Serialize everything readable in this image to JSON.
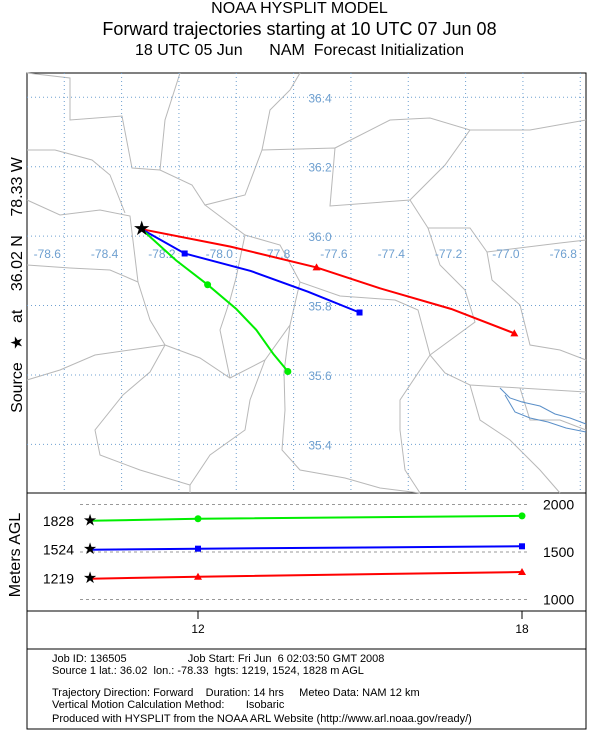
{
  "header": {
    "line1": "NOAA HYSPLIT MODEL",
    "line2": "Forward trajectories starting at 10 UTC 07 Jun 08",
    "line3": "18 UTC 05 Jun      NAM  Forecast Initialization"
  },
  "side_label": {
    "source": "Source",
    "at": "at",
    "lat": "36.02 N",
    "lon": "78.33 W"
  },
  "meters_label": "Meters AGL",
  "colors": {
    "red": "#ff0000",
    "blue": "#0000ff",
    "green": "#00ee00",
    "grid": "#6fa0d0",
    "map": "#b0b0b0"
  },
  "chart_data": [
    {
      "type": "line",
      "title": "Forward trajectories starting at 10 UTC 07 Jun 08",
      "xlabel": "",
      "ylabel": "",
      "lon_ticks": [
        "-78.6",
        "-78.4",
        "-78.2",
        "-78.0",
        "-77.8",
        "-77.6",
        "-77.4",
        "-77.2",
        "-77.0",
        "-76.8"
      ],
      "lat_ticks": [
        "36.4",
        "36.2",
        "36.0",
        "35.8",
        "35.6",
        "35.4"
      ],
      "xlim": [
        -78.73,
        -76.78
      ],
      "ylim": [
        35.26,
        36.47
      ],
      "source": {
        "lat": 36.02,
        "lon": -78.33
      },
      "series": [
        {
          "color": "red",
          "x": [
            -78.33,
            -78.02,
            -77.72,
            -77.5,
            -77.25,
            -77.03
          ],
          "y": [
            36.02,
            35.97,
            35.91,
            35.85,
            35.79,
            35.72
          ]
        },
        {
          "color": "blue",
          "x": [
            -78.33,
            -78.18,
            -77.95,
            -77.75,
            -77.57
          ],
          "y": [
            36.02,
            35.95,
            35.9,
            35.84,
            35.78
          ]
        },
        {
          "color": "green",
          "x": [
            -78.33,
            -78.21,
            -78.1,
            -78.0,
            -77.93,
            -77.87,
            -77.82
          ],
          "y": [
            36.02,
            35.93,
            35.86,
            35.79,
            35.73,
            35.66,
            35.61
          ]
        }
      ]
    },
    {
      "type": "line",
      "xlabel": "",
      "ylabel": "Meters AGL",
      "x_ticks": [
        "12",
        "18"
      ],
      "y_ticks": [
        "2000",
        "1500",
        "1000"
      ],
      "start_labels": [
        "1828",
        "1524",
        "1219"
      ],
      "xlim": [
        10,
        18
      ],
      "ylim": [
        900,
        2100
      ],
      "series": [
        {
          "color": "green",
          "x": [
            10,
            12,
            18
          ],
          "y": [
            1828,
            1850,
            1880
          ]
        },
        {
          "color": "blue",
          "x": [
            10,
            12,
            18
          ],
          "y": [
            1524,
            1535,
            1560
          ]
        },
        {
          "color": "red",
          "x": [
            10,
            12,
            18
          ],
          "y": [
            1219,
            1240,
            1290
          ]
        }
      ]
    }
  ],
  "info": {
    "line1": "Job ID: 136505                    Job Start: Fri Jun  6 02:03:50 GMT 2008",
    "line2": "Source 1 lat.: 36.02  lon.: -78.33  hgts: 1219, 1524, 1828 m AGL",
    "line3": "Trajectory Direction: Forward    Duration: 14 hrs     Meteo Data: NAM 12 km",
    "line4": "Vertical Motion Calculation Method:       Isobaric",
    "line5": "Produced with HYSPLIT from the NOAA ARL Website (http://www.arl.noaa.gov/ready/)"
  }
}
